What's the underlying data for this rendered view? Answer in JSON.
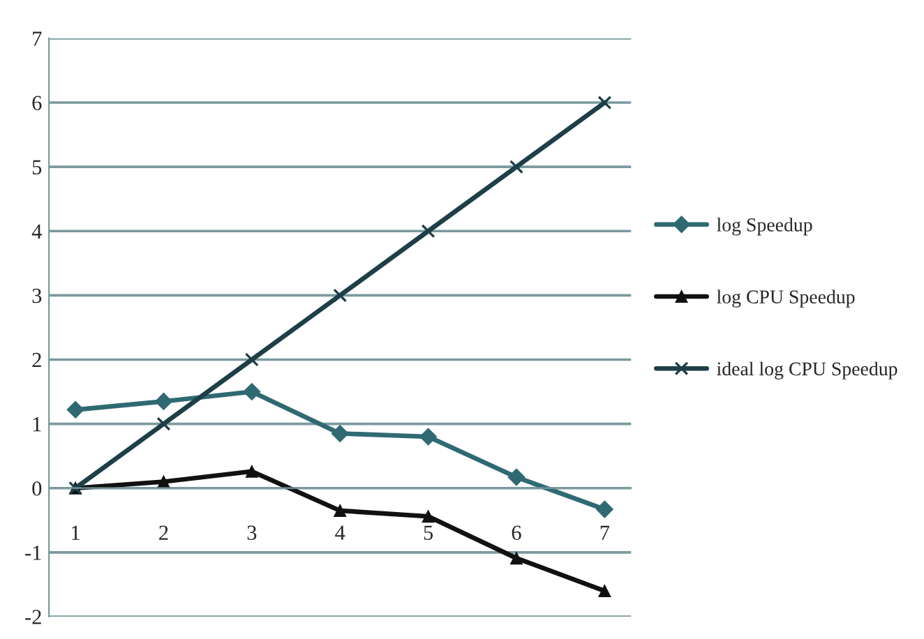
{
  "chart_data": {
    "type": "line",
    "categories": [
      "1",
      "2",
      "3",
      "4",
      "5",
      "6",
      "7"
    ],
    "series": [
      {
        "name": "log Speedup",
        "color": "#2f6a73",
        "marker": "diamond",
        "values": [
          1.22,
          1.35,
          1.5,
          0.85,
          0.8,
          0.17,
          -0.33
        ]
      },
      {
        "name": "log CPU Speedup",
        "color": "#111111",
        "marker": "triangle",
        "values": [
          0,
          0.1,
          0.26,
          -0.35,
          -0.44,
          -1.09,
          -1.6
        ]
      },
      {
        "name": "ideal log CPU Speedup",
        "color": "#1e3f47",
        "marker": "cross",
        "values": [
          0,
          1,
          2,
          3,
          4,
          5,
          6
        ]
      }
    ],
    "ylim": [
      -2,
      7
    ],
    "yticks": [
      -2,
      -1,
      0,
      1,
      2,
      3,
      4,
      5,
      6,
      7
    ],
    "grid": "y",
    "legend": "right"
  }
}
